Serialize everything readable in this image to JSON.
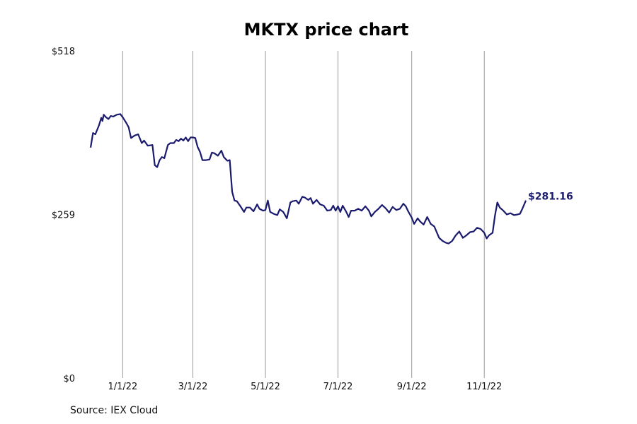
{
  "chart_data": {
    "type": "line",
    "title": "MKTX price chart",
    "xlabel": "",
    "ylabel": "",
    "y_ticks": [
      "$518",
      "$259",
      "$0"
    ],
    "y_tick_values": [
      518,
      259,
      0
    ],
    "ylim": [
      0,
      518
    ],
    "x_ticks": [
      "1/1/22",
      "3/1/22",
      "5/1/22",
      "7/1/22",
      "9/1/22",
      "11/1/22"
    ],
    "x_tick_dates": [
      "2022-01-01",
      "2022-03-01",
      "2022-05-01",
      "2022-07-01",
      "2022-09-01",
      "2022-11-01"
    ],
    "xlim": [
      "2021-12-05",
      "2022-12-28"
    ],
    "grid": "vertical",
    "last_value_label": "$281.16",
    "line_color": "#1a1a6e",
    "series": [
      {
        "values": [
          [
            "2021-12-05",
            365
          ],
          [
            "2021-12-07",
            388
          ],
          [
            "2021-12-09",
            386
          ],
          [
            "2021-12-12",
            400
          ],
          [
            "2021-12-14",
            412
          ],
          [
            "2021-12-15",
            407
          ],
          [
            "2021-12-16",
            417
          ],
          [
            "2021-12-18",
            413
          ],
          [
            "2021-12-20",
            410
          ],
          [
            "2021-12-22",
            415
          ],
          [
            "2021-12-24",
            414
          ],
          [
            "2021-12-27",
            417
          ],
          [
            "2021-12-30",
            418
          ],
          [
            "2022-01-01",
            413
          ],
          [
            "2022-01-04",
            404
          ],
          [
            "2022-01-06",
            397
          ],
          [
            "2022-01-08",
            380
          ],
          [
            "2022-01-11",
            384
          ],
          [
            "2022-01-14",
            386
          ],
          [
            "2022-01-17",
            372
          ],
          [
            "2022-01-19",
            376
          ],
          [
            "2022-01-22",
            368
          ],
          [
            "2022-01-26",
            369
          ],
          [
            "2022-01-28",
            337
          ],
          [
            "2022-01-30",
            334
          ],
          [
            "2022-02-01",
            345
          ],
          [
            "2022-02-03",
            350
          ],
          [
            "2022-02-05",
            348
          ],
          [
            "2022-02-08",
            369
          ],
          [
            "2022-02-10",
            372
          ],
          [
            "2022-02-13",
            372
          ],
          [
            "2022-02-15",
            377
          ],
          [
            "2022-02-17",
            375
          ],
          [
            "2022-02-19",
            379
          ],
          [
            "2022-02-21",
            376
          ],
          [
            "2022-02-23",
            381
          ],
          [
            "2022-02-25",
            375
          ],
          [
            "2022-02-27",
            381
          ],
          [
            "2022-03-01",
            381
          ],
          [
            "2022-03-03",
            380
          ],
          [
            "2022-03-05",
            366
          ],
          [
            "2022-03-07",
            358
          ],
          [
            "2022-03-09",
            345
          ],
          [
            "2022-03-12",
            345
          ],
          [
            "2022-03-15",
            346
          ],
          [
            "2022-03-17",
            357
          ],
          [
            "2022-03-19",
            356
          ],
          [
            "2022-03-22",
            352
          ],
          [
            "2022-03-25",
            360
          ],
          [
            "2022-03-27",
            350
          ],
          [
            "2022-03-30",
            344
          ],
          [
            "2022-04-01",
            345
          ],
          [
            "2022-04-02",
            320
          ],
          [
            "2022-04-03",
            295
          ],
          [
            "2022-04-05",
            281
          ],
          [
            "2022-04-07",
            280
          ],
          [
            "2022-04-10",
            272
          ],
          [
            "2022-04-13",
            263
          ],
          [
            "2022-04-15",
            270
          ],
          [
            "2022-04-18",
            270
          ],
          [
            "2022-04-21",
            264
          ],
          [
            "2022-04-24",
            275
          ],
          [
            "2022-04-26",
            268
          ],
          [
            "2022-04-29",
            265
          ],
          [
            "2022-05-01",
            266
          ],
          [
            "2022-05-03",
            281
          ],
          [
            "2022-05-05",
            263
          ],
          [
            "2022-05-08",
            260
          ],
          [
            "2022-05-11",
            258
          ],
          [
            "2022-05-13",
            267
          ],
          [
            "2022-05-16",
            263
          ],
          [
            "2022-05-19",
            253
          ],
          [
            "2022-05-22",
            278
          ],
          [
            "2022-05-24",
            280
          ],
          [
            "2022-05-27",
            281
          ],
          [
            "2022-05-29",
            276
          ],
          [
            "2022-06-01",
            287
          ],
          [
            "2022-06-03",
            286
          ],
          [
            "2022-06-06",
            282
          ],
          [
            "2022-06-08",
            285
          ],
          [
            "2022-06-10",
            276
          ],
          [
            "2022-06-13",
            282
          ],
          [
            "2022-06-16",
            275
          ],
          [
            "2022-06-19",
            273
          ],
          [
            "2022-06-22",
            265
          ],
          [
            "2022-06-25",
            266
          ],
          [
            "2022-06-27",
            273
          ],
          [
            "2022-06-29",
            265
          ],
          [
            "2022-07-01",
            272
          ],
          [
            "2022-07-03",
            263
          ],
          [
            "2022-07-05",
            273
          ],
          [
            "2022-07-08",
            263
          ],
          [
            "2022-07-10",
            255
          ],
          [
            "2022-07-12",
            265
          ],
          [
            "2022-07-15",
            265
          ],
          [
            "2022-07-18",
            268
          ],
          [
            "2022-07-21",
            265
          ],
          [
            "2022-07-24",
            272
          ],
          [
            "2022-07-27",
            265
          ],
          [
            "2022-07-29",
            256
          ],
          [
            "2022-08-01",
            263
          ],
          [
            "2022-08-04",
            268
          ],
          [
            "2022-08-07",
            274
          ],
          [
            "2022-08-10",
            269
          ],
          [
            "2022-08-13",
            262
          ],
          [
            "2022-08-16",
            271
          ],
          [
            "2022-08-19",
            266
          ],
          [
            "2022-08-22",
            268
          ],
          [
            "2022-08-25",
            276
          ],
          [
            "2022-08-27",
            272
          ],
          [
            "2022-08-29",
            264
          ],
          [
            "2022-09-01",
            254
          ],
          [
            "2022-09-03",
            244
          ],
          [
            "2022-09-06",
            253
          ],
          [
            "2022-09-08",
            248
          ],
          [
            "2022-09-11",
            243
          ],
          [
            "2022-09-14",
            255
          ],
          [
            "2022-09-17",
            244
          ],
          [
            "2022-09-20",
            240
          ],
          [
            "2022-09-24",
            222
          ],
          [
            "2022-09-27",
            217
          ],
          [
            "2022-09-30",
            214
          ],
          [
            "2022-10-02",
            213
          ],
          [
            "2022-10-05",
            217
          ],
          [
            "2022-10-08",
            226
          ],
          [
            "2022-10-11",
            232
          ],
          [
            "2022-10-14",
            222
          ],
          [
            "2022-10-17",
            226
          ],
          [
            "2022-10-20",
            231
          ],
          [
            "2022-10-23",
            232
          ],
          [
            "2022-10-26",
            238
          ],
          [
            "2022-10-29",
            236
          ],
          [
            "2022-11-01",
            230
          ],
          [
            "2022-11-03",
            221
          ],
          [
            "2022-11-05",
            226
          ],
          [
            "2022-11-08",
            230
          ],
          [
            "2022-11-10",
            257
          ],
          [
            "2022-11-12",
            278
          ],
          [
            "2022-11-14",
            270
          ],
          [
            "2022-11-17",
            265
          ],
          [
            "2022-11-20",
            259
          ],
          [
            "2022-11-23",
            261
          ],
          [
            "2022-11-26",
            258
          ],
          [
            "2022-11-29",
            259
          ],
          [
            "2022-12-01",
            260
          ],
          [
            "2022-12-03",
            268
          ],
          [
            "2022-12-06",
            281.16
          ]
        ]
      }
    ]
  },
  "source_note": "Source: IEX Cloud"
}
